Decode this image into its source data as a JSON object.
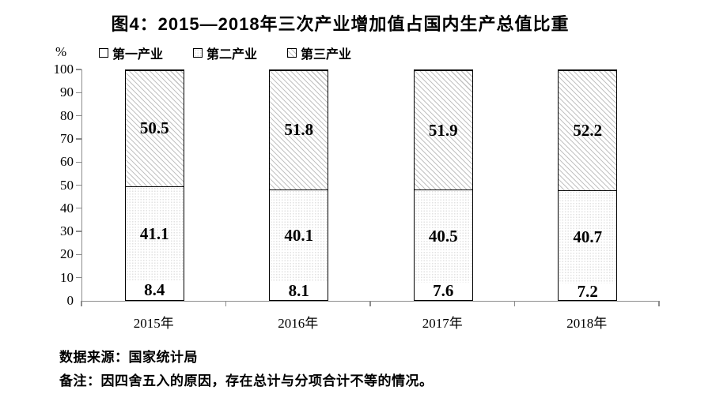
{
  "chart_data": {
    "type": "bar",
    "stacked": true,
    "title": "图4：2015—2018年三次产业增加值占国内生产总值比重",
    "unit_label": "%",
    "categories": [
      "2015年",
      "2016年",
      "2017年",
      "2018年"
    ],
    "series": [
      {
        "name": "第一产业",
        "values": [
          8.4,
          8.1,
          7.6,
          7.2
        ],
        "fill": "white"
      },
      {
        "name": "第二产业",
        "values": [
          41.1,
          40.1,
          40.5,
          40.7
        ],
        "fill": "fine-dot"
      },
      {
        "name": "第三产业",
        "values": [
          50.5,
          51.8,
          51.9,
          52.2
        ],
        "fill": "diagonal-hatch"
      }
    ],
    "ylim": [
      0,
      100
    ],
    "y_ticks": [
      0,
      10,
      20,
      30,
      40,
      50,
      60,
      70,
      80,
      90,
      100
    ],
    "legend_position": "top",
    "grid": false,
    "data_labels": true
  },
  "notes": {
    "source": "数据来源：国家统计局",
    "remark": "备注：因四舍五入的原因，存在总计与分项合计不等的情况。"
  },
  "colors": {
    "axis": "#8c8c8c",
    "bar_border": "#000000",
    "text": "#000000",
    "background": "#ffffff"
  }
}
